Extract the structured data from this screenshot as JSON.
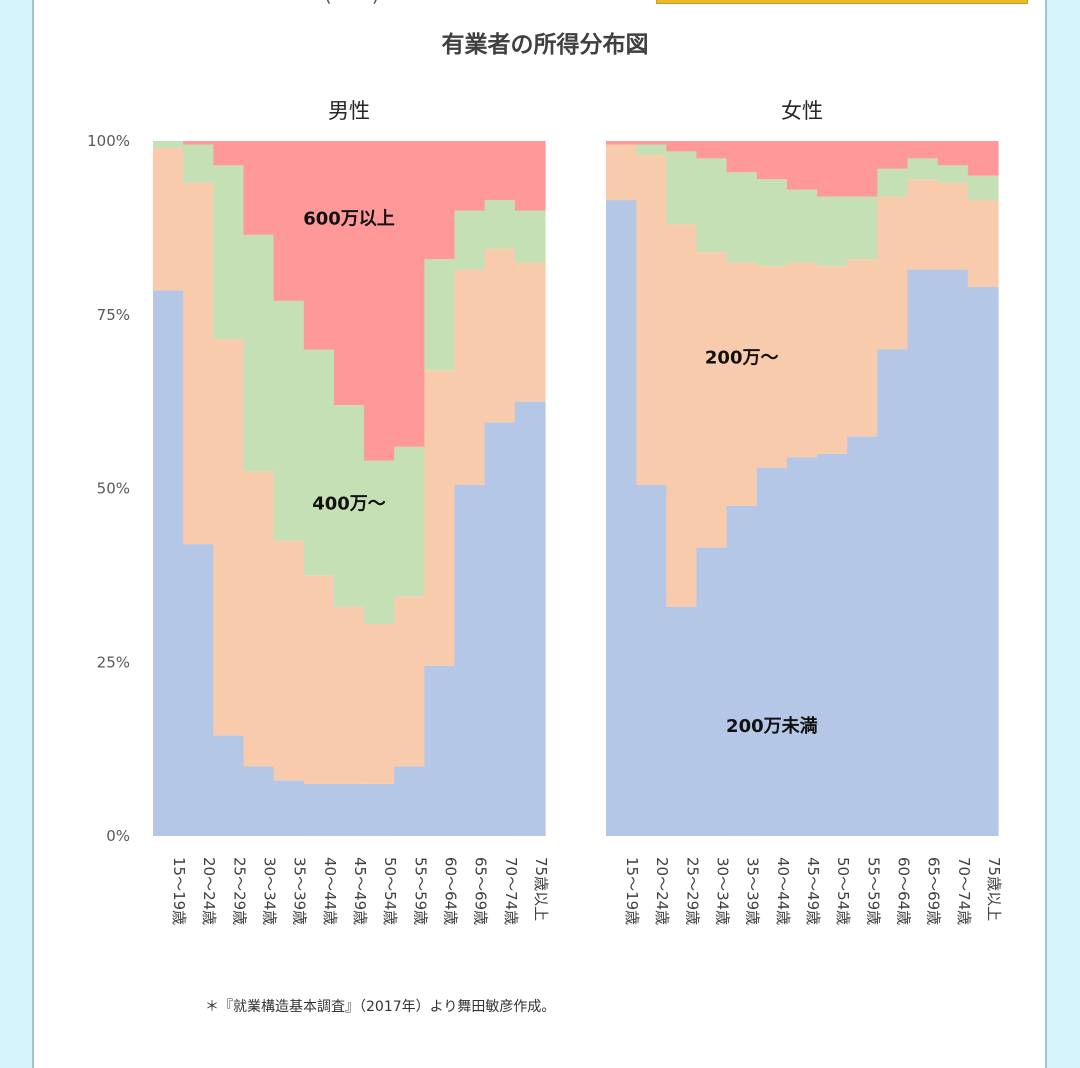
{
  "header_fragment": {
    "paren_text": "(・・)"
  },
  "footer": {
    "source_note": "＊『就業構造基本調査』（2017年）より舞田敏彦作成。"
  },
  "colors": {
    "under_200": "#b4c7e7",
    "from_200": "#f8cbad",
    "from_400": "#c5e0b4",
    "over_600": "#ff9999",
    "banner": "#e8b92a",
    "background": "#d4f3fb"
  },
  "chart_data": {
    "type": "area",
    "title": "有業者の所得分布図",
    "y_ticks": [
      "100%",
      "75%",
      "50%",
      "25%",
      "0%"
    ],
    "ylim": [
      0,
      100
    ],
    "categories": [
      "15～19歳",
      "20～24歳",
      "25～29歳",
      "30～34歳",
      "35～39歳",
      "40～44歳",
      "45～49歳",
      "50～54歳",
      "55～59歳",
      "60～64歳",
      "65～69歳",
      "70～74歳",
      "75歳以上"
    ],
    "stacked": true,
    "band_labels": [
      "200万未満",
      "200万～",
      "400万～",
      "600万以上"
    ],
    "panels": [
      {
        "title": "男性",
        "series": [
          {
            "name": "200万未満",
            "color": "#b4c7e7",
            "values": [
              78.5,
              42,
              14.5,
              10,
              8,
              7.5,
              7.5,
              7.5,
              10,
              24.5,
              50.5,
              59.5,
              62.5
            ]
          },
          {
            "name": "200万～",
            "color": "#f8cbad",
            "values": [
              20.5,
              52,
              57,
              42.5,
              34.5,
              30,
              25.5,
              23,
              24.5,
              42.5,
              31,
              25,
              20
            ]
          },
          {
            "name": "400万～",
            "color": "#c5e0b4",
            "values": [
              1,
              5.5,
              25,
              34,
              34.5,
              32.5,
              29,
              23.5,
              21.5,
              16,
              8.5,
              7,
              7.5
            ]
          },
          {
            "name": "600万以上",
            "color": "#ff9999",
            "values": [
              0,
              0.5,
              3.5,
              13.5,
              23,
              30,
              38,
              46,
              44,
              17,
              10,
              8.5,
              10
            ]
          }
        ],
        "labels": [
          {
            "text": "600万以上",
            "cat": 6,
            "y": 88
          },
          {
            "text": "400万～",
            "cat": 6,
            "y": 47
          }
        ]
      },
      {
        "title": "女性",
        "series": [
          {
            "name": "200万未満",
            "color": "#b4c7e7",
            "values": [
              91.5,
              50.5,
              33,
              41.5,
              47.5,
              53,
              54.5,
              55,
              57.5,
              70,
              81.5,
              81.5,
              79
            ]
          },
          {
            "name": "200万～",
            "color": "#f8cbad",
            "values": [
              8,
              47.5,
              55,
              42.5,
              35,
              29,
              28,
              27,
              25.5,
              22,
              13,
              12.5,
              12.5
            ]
          },
          {
            "name": "400万～",
            "color": "#c5e0b4",
            "values": [
              0,
              1.5,
              10.5,
              13.5,
              13,
              12.5,
              10.5,
              10,
              9,
              4,
              3,
              2.5,
              3.5
            ]
          },
          {
            "name": "600万以上",
            "color": "#ff9999",
            "values": [
              0.5,
              0.5,
              1.5,
              2.5,
              4.5,
              5.5,
              7,
              8,
              8,
              4,
              2.5,
              3.5,
              5
            ]
          }
        ],
        "labels": [
          {
            "text": "200万～",
            "cat": 4,
            "y": 68
          },
          {
            "text": "200万未満",
            "cat": 5,
            "y": 15
          }
        ]
      }
    ]
  }
}
